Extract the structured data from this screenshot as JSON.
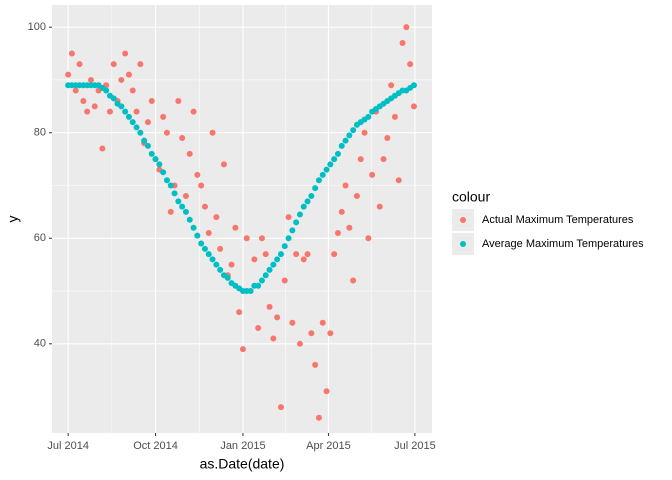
{
  "chart_data": {
    "type": "scatter",
    "x_label": "as.Date(date)",
    "y_label": "y",
    "legend_title": "colour",
    "legend_position": "right",
    "grid": true,
    "xlim": [
      -17,
      383
    ],
    "ylim": [
      23.1,
      104.2
    ],
    "xticks": [
      {
        "value": 0,
        "label": "Jul 2014"
      },
      {
        "value": 92,
        "label": "Oct 2014"
      },
      {
        "value": 184,
        "label": "Jan 2015"
      },
      {
        "value": 274,
        "label": "Apr 2015"
      },
      {
        "value": 365,
        "label": "Jul 2015"
      }
    ],
    "yticks": [
      40,
      60,
      80,
      100
    ],
    "x": [
      0,
      4,
      8,
      12,
      16,
      20,
      24,
      28,
      32,
      36,
      40,
      44,
      48,
      52,
      56,
      60,
      64,
      68,
      72,
      76,
      80,
      84,
      88,
      92,
      96,
      100,
      104,
      108,
      112,
      116,
      120,
      124,
      128,
      132,
      136,
      140,
      144,
      148,
      152,
      156,
      160,
      164,
      168,
      172,
      176,
      180,
      184,
      188,
      192,
      196,
      200,
      204,
      208,
      212,
      216,
      220,
      224,
      228,
      232,
      236,
      240,
      244,
      248,
      252,
      256,
      260,
      264,
      268,
      272,
      276,
      280,
      284,
      288,
      292,
      296,
      300,
      304,
      308,
      312,
      316,
      320,
      324,
      328,
      332,
      336,
      340,
      344,
      348,
      352,
      356,
      360,
      364
    ],
    "series": [
      {
        "name": "Actual Maximum Temperatures",
        "color": "#F8766D",
        "values": [
          91,
          95,
          88,
          93,
          86,
          84,
          90,
          85,
          88,
          77,
          89,
          84,
          93,
          86,
          90,
          95,
          91,
          88,
          84,
          93,
          78,
          82,
          86,
          75,
          73,
          83,
          80,
          65,
          70,
          86,
          79,
          68,
          76,
          84,
          72,
          70,
          66,
          61,
          80,
          64,
          58,
          74,
          53,
          55,
          62,
          46,
          39,
          60,
          50,
          56,
          43,
          60,
          57,
          47,
          41,
          45,
          28,
          52,
          64,
          44,
          57,
          40,
          56,
          57,
          42,
          36,
          26,
          44,
          31,
          42,
          57,
          61,
          65,
          70,
          62,
          52,
          68,
          75,
          80,
          60,
          72,
          84,
          66,
          75,
          79,
          89,
          83,
          71,
          97,
          100,
          93,
          85
        ]
      },
      {
        "name": "Average Maximum Temperatures",
        "color": "#00BFC4",
        "values": [
          89,
          89,
          89,
          89,
          89,
          89,
          89,
          89,
          89,
          88.5,
          88,
          87,
          86.5,
          85.5,
          85,
          84,
          83,
          82,
          81,
          80,
          78.5,
          77.5,
          76,
          75,
          74,
          72.5,
          71,
          70,
          68.5,
          67,
          66,
          65,
          63.5,
          62,
          60.5,
          59,
          58,
          57,
          56,
          55,
          54,
          53,
          52.5,
          51.5,
          51,
          50.5,
          50,
          50,
          50,
          51,
          51,
          52,
          53,
          54,
          55,
          56,
          57,
          58.5,
          60,
          61.5,
          63,
          64.5,
          66,
          67,
          68,
          69.5,
          71,
          72,
          73,
          74,
          75,
          76,
          77.5,
          78.5,
          79.5,
          80.5,
          81.5,
          82,
          82.5,
          83,
          84,
          84.5,
          85,
          85.5,
          86,
          86.5,
          87,
          87.5,
          88,
          88,
          88.5,
          89
        ]
      }
    ]
  }
}
